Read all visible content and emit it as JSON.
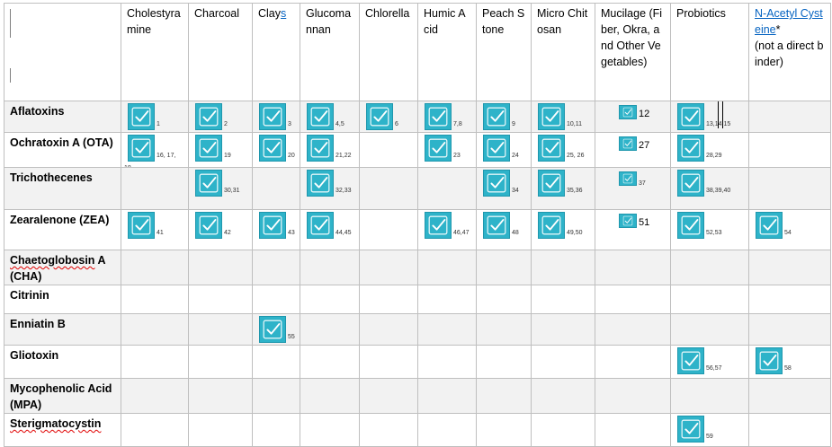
{
  "columns": [
    {
      "label": "",
      "link": false
    },
    {
      "label": "Cholestyramine",
      "link": false
    },
    {
      "label": "Charcoal",
      "link": false
    },
    {
      "label": "Clays",
      "link": false,
      "link_suffix": "s"
    },
    {
      "label": "Glucomannan",
      "link": false
    },
    {
      "label": "Chlorella",
      "link": false
    },
    {
      "label": "Humic Acid",
      "link": false
    },
    {
      "label": "Peach Stone",
      "link": false
    },
    {
      "label": "Micro Chitosan",
      "link": false
    },
    {
      "label": "Mucilage (Fiber, Okra, and Other Vegetables)",
      "link": false
    },
    {
      "label": "Probiotics",
      "link": false
    },
    {
      "label": "N-Acetyl Cysteine",
      "link": true,
      "suffix": "*",
      "note": "(not a direct binder)"
    }
  ],
  "rows": [
    {
      "label": "Aflatoxins",
      "wavy": false,
      "shaded": true,
      "marks": [
        {
          "col": 1,
          "ref": "1"
        },
        {
          "col": 2,
          "ref": "2"
        },
        {
          "col": 3,
          "ref": "3"
        },
        {
          "col": 4,
          "ref": "4,5"
        },
        {
          "col": 5,
          "ref": "6"
        },
        {
          "col": 6,
          "ref": "7,8"
        },
        {
          "col": 7,
          "ref": "9"
        },
        {
          "col": 8,
          "ref": "10,11"
        },
        {
          "col": 9,
          "ref": "12",
          "big": true
        },
        {
          "col": 10,
          "ref": "13,14,15"
        }
      ]
    },
    {
      "label": "Ochratoxin A (OTA)",
      "wavy": false,
      "shaded": false,
      "marks": [
        {
          "col": 1,
          "ref": "16, 17,",
          "ref2": "18"
        },
        {
          "col": 2,
          "ref": "19"
        },
        {
          "col": 3,
          "ref": "20"
        },
        {
          "col": 4,
          "ref": "21,22"
        },
        {
          "col": 6,
          "ref": "23"
        },
        {
          "col": 7,
          "ref": "24"
        },
        {
          "col": 8,
          "ref": "25, 26"
        },
        {
          "col": 9,
          "ref": "27",
          "big": true
        },
        {
          "col": 10,
          "ref": "28,29"
        }
      ]
    },
    {
      "label": "Trichothecenes",
      "wavy": false,
      "shaded": true,
      "marks": [
        {
          "col": 2,
          "ref": "30,31"
        },
        {
          "col": 4,
          "ref": "32,33"
        },
        {
          "col": 7,
          "ref": "34"
        },
        {
          "col": 8,
          "ref": "35,36"
        },
        {
          "col": 9,
          "ref": "37"
        },
        {
          "col": 10,
          "ref": "38,39,40"
        }
      ]
    },
    {
      "label": "Zearalenone (ZEA)",
      "wavy": false,
      "shaded": false,
      "marks": [
        {
          "col": 1,
          "ref": "41"
        },
        {
          "col": 2,
          "ref": "42"
        },
        {
          "col": 3,
          "ref": "43"
        },
        {
          "col": 4,
          "ref": "44,45"
        },
        {
          "col": 6,
          "ref": "46,47"
        },
        {
          "col": 7,
          "ref": "48"
        },
        {
          "col": 8,
          "ref": "49,50"
        },
        {
          "col": 9,
          "ref": "51",
          "big": true
        },
        {
          "col": 10,
          "ref": "52,53"
        },
        {
          "col": 11,
          "ref": "54"
        }
      ]
    },
    {
      "label": "Chaetoglobosin A (CHA)",
      "wavy": true,
      "shaded": true,
      "marks": []
    },
    {
      "label": "Citrinin",
      "wavy": false,
      "shaded": false,
      "marks": []
    },
    {
      "label": "Enniatin B",
      "wavy": false,
      "shaded": true,
      "marks": [
        {
          "col": 3,
          "ref": "55"
        }
      ]
    },
    {
      "label": "Gliotoxin",
      "wavy": false,
      "shaded": false,
      "marks": [
        {
          "col": 10,
          "ref": "56,57"
        },
        {
          "col": 11,
          "ref": "58"
        }
      ]
    },
    {
      "label": "Mycophenolic Acid (MPA)",
      "wavy": false,
      "shaded": true,
      "marks": []
    },
    {
      "label": "Sterigmatocystin",
      "wavy": true,
      "shaded": false,
      "marks": [
        {
          "col": 10,
          "ref": "59"
        }
      ]
    }
  ],
  "colors": {
    "check_fill": "#2eb3c9",
    "check_border": "#1f97ad",
    "check_tick": "#ffffff",
    "shade": "#f2f2f2",
    "grid": "#bfbfbf",
    "link": "#0563c1"
  },
  "icons": {
    "mark": "checkbox-checked-icon"
  }
}
